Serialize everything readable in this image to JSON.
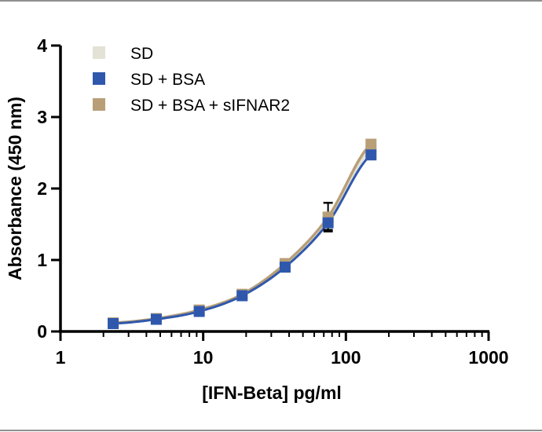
{
  "chart_data": {
    "type": "scatter",
    "title": "",
    "xlabel": "[IFN-Beta] pg/ml",
    "ylabel": "Absorbance (450 nm)",
    "xscale": "log",
    "xlim": [
      1,
      1000
    ],
    "ylim": [
      0,
      4
    ],
    "x_ticks": [
      "1",
      "10",
      "100",
      "1000"
    ],
    "y_ticks": [
      "0",
      "1",
      "2",
      "3",
      "4"
    ],
    "grid": false,
    "legend_position": "top-left",
    "fit": "smooth curve through each series",
    "series": [
      {
        "name": "SD",
        "color": "#e4e2d6",
        "x": [
          2.34,
          4.69,
          9.38,
          18.75,
          37.5,
          75,
          150
        ],
        "y": [
          0.12,
          0.18,
          0.3,
          0.52,
          0.93,
          1.55,
          2.55
        ],
        "error": [
          0,
          0,
          0,
          0,
          0,
          0,
          0
        ]
      },
      {
        "name": "SD + BSA",
        "color": "#2f58ad",
        "x": [
          2.34,
          4.69,
          9.38,
          18.75,
          37.5,
          75,
          150
        ],
        "y": [
          0.11,
          0.17,
          0.28,
          0.5,
          0.9,
          1.52,
          2.47
        ],
        "error": [
          0,
          0,
          0,
          0,
          0,
          0.1,
          0
        ]
      },
      {
        "name": "SD + BSA + sIFNAR2",
        "color": "#b89f78",
        "x": [
          2.34,
          4.69,
          9.38,
          18.75,
          37.5,
          75,
          150
        ],
        "y": [
          0.12,
          0.18,
          0.3,
          0.52,
          0.95,
          1.6,
          2.62
        ],
        "error": [
          0,
          0,
          0,
          0,
          0,
          0.2,
          0
        ]
      }
    ]
  }
}
